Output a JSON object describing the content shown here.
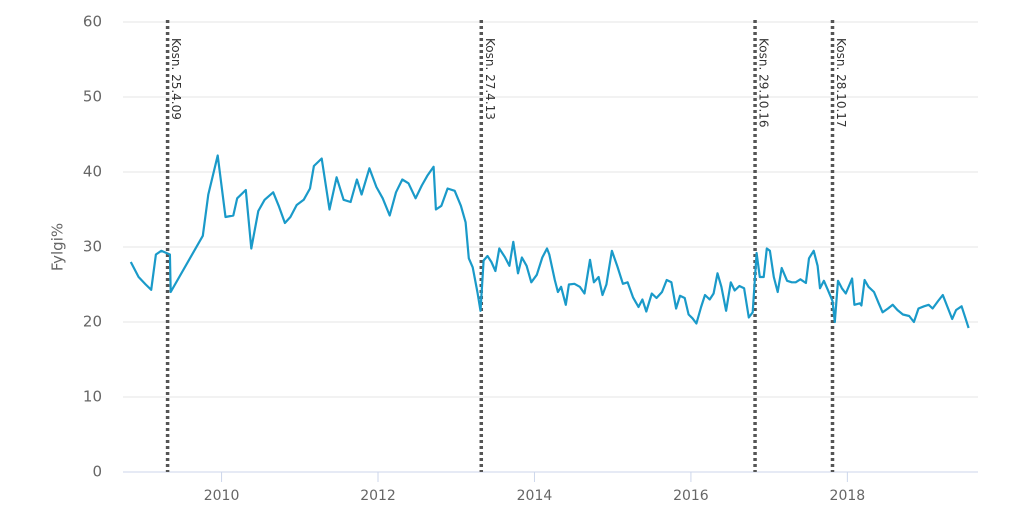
{
  "chart_data": {
    "type": "line",
    "y_label": "Fylgi%",
    "xlim": [
      2008.74,
      2019.67
    ],
    "xticks": [
      2010,
      2012,
      2014,
      2016,
      2018
    ],
    "ylim": [
      0,
      60
    ],
    "yticks": [
      0,
      10,
      20,
      30,
      40,
      50,
      60
    ],
    "grid": true,
    "annotations": [
      {
        "x": 2009.31,
        "label": "Kosn. 25.4.09"
      },
      {
        "x": 2013.32,
        "label": "Kosn. 27.4.13"
      },
      {
        "x": 2016.82,
        "label": "Kosn. 29.10.16"
      },
      {
        "x": 2017.81,
        "label": "Kosn. 28.10.17"
      }
    ],
    "x": [
      2008.84,
      2008.94,
      2009.03,
      2009.1,
      2009.16,
      2009.23,
      2009.34,
      2009.35,
      2009.76,
      2009.83,
      2009.95,
      2010.05,
      2010.15,
      2010.2,
      2010.31,
      2010.38,
      2010.47,
      2010.55,
      2010.66,
      2010.73,
      2010.81,
      2010.88,
      2010.96,
      2011.05,
      2011.13,
      2011.18,
      2011.28,
      2011.38,
      2011.47,
      2011.56,
      2011.65,
      2011.73,
      2011.79,
      2011.89,
      2011.98,
      2012.06,
      2012.15,
      2012.23,
      2012.31,
      2012.39,
      2012.48,
      2012.56,
      2012.63,
      2012.71,
      2012.74,
      2012.81,
      2012.89,
      2012.98,
      2013.06,
      2013.12,
      2013.16,
      2013.21,
      2013.27,
      2013.31,
      2013.35,
      2013.4,
      2013.45,
      2013.5,
      2013.55,
      2013.62,
      2013.68,
      2013.73,
      2013.79,
      2013.84,
      2013.9,
      2013.96,
      2014.03,
      2014.1,
      2014.16,
      2014.19,
      2014.26,
      2014.3,
      2014.34,
      2014.4,
      2014.44,
      2014.51,
      2014.58,
      2014.64,
      2014.71,
      2014.76,
      2014.82,
      2014.87,
      2014.92,
      2014.99,
      2015.06,
      2015.13,
      2015.19,
      2015.26,
      2015.33,
      2015.38,
      2015.43,
      2015.5,
      2015.56,
      2015.63,
      2015.69,
      2015.75,
      2015.81,
      2015.86,
      2015.92,
      2015.97,
      2016.02,
      2016.07,
      2016.13,
      2016.18,
      2016.24,
      2016.29,
      2016.34,
      2016.39,
      2016.45,
      2016.51,
      2016.56,
      2016.62,
      2016.68,
      2016.74,
      2016.79,
      2016.84,
      2016.88,
      2016.93,
      2016.97,
      2017.01,
      2017.06,
      2017.11,
      2017.16,
      2017.23,
      2017.29,
      2017.34,
      2017.4,
      2017.47,
      2017.51,
      2017.57,
      2017.62,
      2017.65,
      2017.7,
      2017.75,
      2017.81,
      2017.84,
      2017.88,
      2017.93,
      2017.98,
      2018.06,
      2018.09,
      2018.16,
      2018.18,
      2018.22,
      2018.27,
      2018.34,
      2018.4,
      2018.45,
      2018.52,
      2018.58,
      2018.64,
      2018.71,
      2018.79,
      2018.85,
      2018.91,
      2018.98,
      2019.04,
      2019.09,
      2019.16,
      2019.22,
      2019.28,
      2019.34,
      2019.39,
      2019.46,
      2019.51,
      2019.55
    ],
    "series": [
      {
        "color": "#1a9ac9",
        "values": [
          28,
          26,
          25,
          24.3,
          29,
          29.5,
          29,
          24,
          31.5,
          37,
          42.2,
          34,
          34.2,
          36.5,
          37.6,
          29.8,
          34.8,
          36.3,
          37.3,
          35.5,
          33.2,
          34,
          35.6,
          36.3,
          37.8,
          40.8,
          41.8,
          35,
          39.3,
          36.3,
          36,
          39,
          37,
          40.5,
          38,
          36.5,
          34.2,
          37.3,
          39,
          38.5,
          36.5,
          38.2,
          39.5,
          40.7,
          35,
          35.5,
          37.8,
          37.5,
          35.5,
          33.3,
          28.5,
          27.3,
          24,
          21.5,
          28.2,
          28.8,
          28,
          26.8,
          29.8,
          28.7,
          27.5,
          30.7,
          26.5,
          28.6,
          27.5,
          25.3,
          26.3,
          28.6,
          29.8,
          29,
          25.6,
          24,
          24.7,
          22.3,
          25,
          25.1,
          24.7,
          23.8,
          28.3,
          25.3,
          26,
          23.6,
          25,
          29.5,
          27.4,
          25.1,
          25.3,
          23.3,
          22,
          23,
          21.4,
          23.8,
          23.2,
          24,
          25.6,
          25.3,
          21.8,
          23.5,
          23.2,
          21,
          20.5,
          19.8,
          22,
          23.6,
          23,
          23.8,
          26.5,
          24.7,
          21.5,
          25.3,
          24.2,
          24.8,
          24.5,
          20.6,
          21.3,
          29.2,
          26,
          26,
          29.8,
          29.5,
          26,
          24,
          27.2,
          25.5,
          25.3,
          25.3,
          25.7,
          25.2,
          28.5,
          29.5,
          27.5,
          24.5,
          25.5,
          24.3,
          22.8,
          20,
          25.5,
          24.5,
          23.8,
          25.8,
          22.3,
          22.5,
          22.2,
          25.6,
          24.7,
          24,
          22.5,
          21.3,
          21.8,
          22.3,
          21.6,
          21,
          20.8,
          20,
          21.8,
          22.1,
          22.3,
          21.8,
          22.8,
          23.6,
          22,
          20.4,
          21.6,
          22.1,
          20.5,
          19.2
        ]
      }
    ]
  }
}
